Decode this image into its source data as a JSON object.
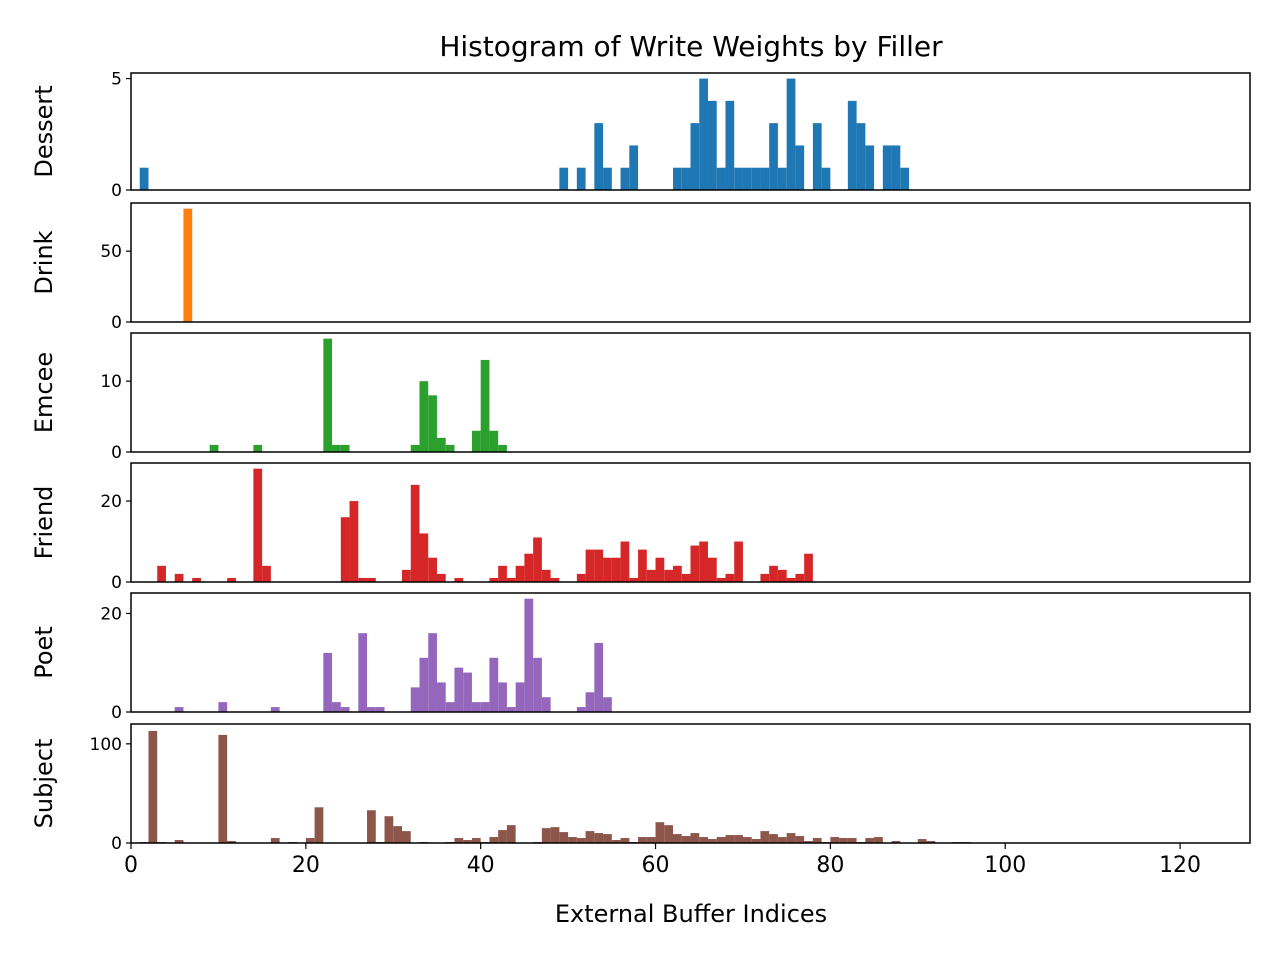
{
  "chart_data": {
    "type": "bar",
    "title": "Histogram of Write Weights by Filler",
    "xlabel": "External Buffer Indices",
    "xlim": [
      0,
      128
    ],
    "xticks": [
      0,
      20,
      40,
      60,
      80,
      100,
      120
    ],
    "bin_width": 1,
    "series": [
      {
        "name": "Dessert",
        "color": "#1f77b4",
        "ylim": [
          0,
          5.25
        ],
        "yticks": [
          0,
          5
        ],
        "x": [
          1,
          49,
          51,
          53,
          54,
          56,
          57,
          62,
          63,
          64,
          65,
          66,
          67,
          68,
          69,
          70,
          71,
          72,
          73,
          74,
          75,
          76,
          78,
          79,
          82,
          83,
          84,
          86,
          87,
          88
        ],
        "values": [
          1,
          1,
          1,
          3,
          1,
          1,
          2,
          1,
          1,
          3,
          5,
          4,
          1,
          4,
          1,
          1,
          1,
          1,
          3,
          1,
          5,
          2,
          3,
          1,
          4,
          3,
          2,
          2,
          2,
          1
        ]
      },
      {
        "name": "Drink",
        "color": "#ff7f0e",
        "ylim": [
          0,
          84
        ],
        "yticks": [
          0,
          50
        ],
        "x": [
          6
        ],
        "values": [
          80
        ]
      },
      {
        "name": "Emcee",
        "color": "#2ca02c",
        "ylim": [
          0,
          16.8
        ],
        "yticks": [
          0,
          10
        ],
        "x": [
          9,
          14,
          22,
          23,
          24,
          32,
          33,
          34,
          35,
          36,
          39,
          40,
          41,
          42
        ],
        "values": [
          1,
          1,
          16,
          1,
          1,
          1,
          10,
          8,
          2,
          1,
          3,
          13,
          3,
          1
        ]
      },
      {
        "name": "Friend",
        "color": "#d62728",
        "ylim": [
          0,
          29.4
        ],
        "yticks": [
          0,
          20
        ],
        "x": [
          3,
          5,
          7,
          11,
          14,
          15,
          24,
          25,
          26,
          27,
          31,
          32,
          33,
          34,
          35,
          37,
          41,
          42,
          43,
          44,
          45,
          46,
          47,
          48,
          51,
          52,
          53,
          54,
          55,
          56,
          57,
          58,
          59,
          60,
          61,
          62,
          63,
          64,
          65,
          66,
          67,
          68,
          69,
          72,
          73,
          74,
          75,
          76,
          77
        ],
        "values": [
          4,
          2,
          1,
          1,
          28,
          4,
          16,
          20,
          1,
          1,
          3,
          24,
          12,
          6,
          2,
          1,
          1,
          4,
          1,
          4,
          7,
          11,
          3,
          1,
          2,
          8,
          8,
          6,
          6,
          10,
          1,
          8,
          3,
          6,
          3,
          4,
          2,
          9,
          10,
          6,
          1,
          2,
          10,
          2,
          4,
          3,
          1,
          2,
          7
        ]
      },
      {
        "name": "Poet",
        "color": "#9467bd",
        "ylim": [
          0,
          24.15
        ],
        "yticks": [
          0,
          20
        ],
        "x": [
          5,
          10,
          16,
          22,
          23,
          24,
          26,
          27,
          28,
          32,
          33,
          34,
          35,
          36,
          37,
          38,
          39,
          40,
          41,
          42,
          43,
          44,
          45,
          46,
          47,
          51,
          52,
          53,
          54
        ],
        "values": [
          1,
          2,
          1,
          12,
          2,
          1,
          16,
          1,
          1,
          5,
          11,
          16,
          6,
          2,
          9,
          8,
          2,
          2,
          11,
          6,
          1,
          6,
          23,
          11,
          3,
          1,
          4,
          14,
          3
        ]
      },
      {
        "name": "Subject",
        "color": "#8c564b",
        "ylim": [
          0,
          120
        ],
        "yticks": [
          0,
          100
        ],
        "x": [
          1,
          2,
          3,
          5,
          10,
          11,
          16,
          18,
          20,
          21,
          27,
          28,
          29,
          30,
          31,
          33,
          36,
          37,
          38,
          39,
          40,
          41,
          42,
          43,
          46,
          47,
          48,
          49,
          50,
          51,
          52,
          53,
          54,
          55,
          56,
          57,
          58,
          59,
          60,
          61,
          62,
          63,
          64,
          65,
          66,
          67,
          68,
          69,
          70,
          71,
          72,
          73,
          74,
          75,
          76,
          77,
          78,
          79,
          80,
          81,
          82,
          83,
          84,
          85,
          87,
          90,
          91,
          94,
          95
        ],
        "values": [
          1,
          113,
          1,
          3,
          109,
          2,
          5,
          1,
          5,
          36,
          33,
          1,
          27,
          17,
          12,
          1,
          1,
          5,
          3,
          5,
          1,
          6,
          13,
          18,
          1,
          15,
          16,
          11,
          6,
          5,
          12,
          10,
          9,
          3,
          5,
          1,
          6,
          6,
          21,
          18,
          9,
          7,
          10,
          6,
          4,
          6,
          8,
          8,
          6,
          4,
          12,
          9,
          6,
          10,
          7,
          2,
          5,
          1,
          6,
          5,
          5,
          1,
          5,
          6,
          2,
          4,
          2,
          1,
          1
        ]
      }
    ]
  }
}
